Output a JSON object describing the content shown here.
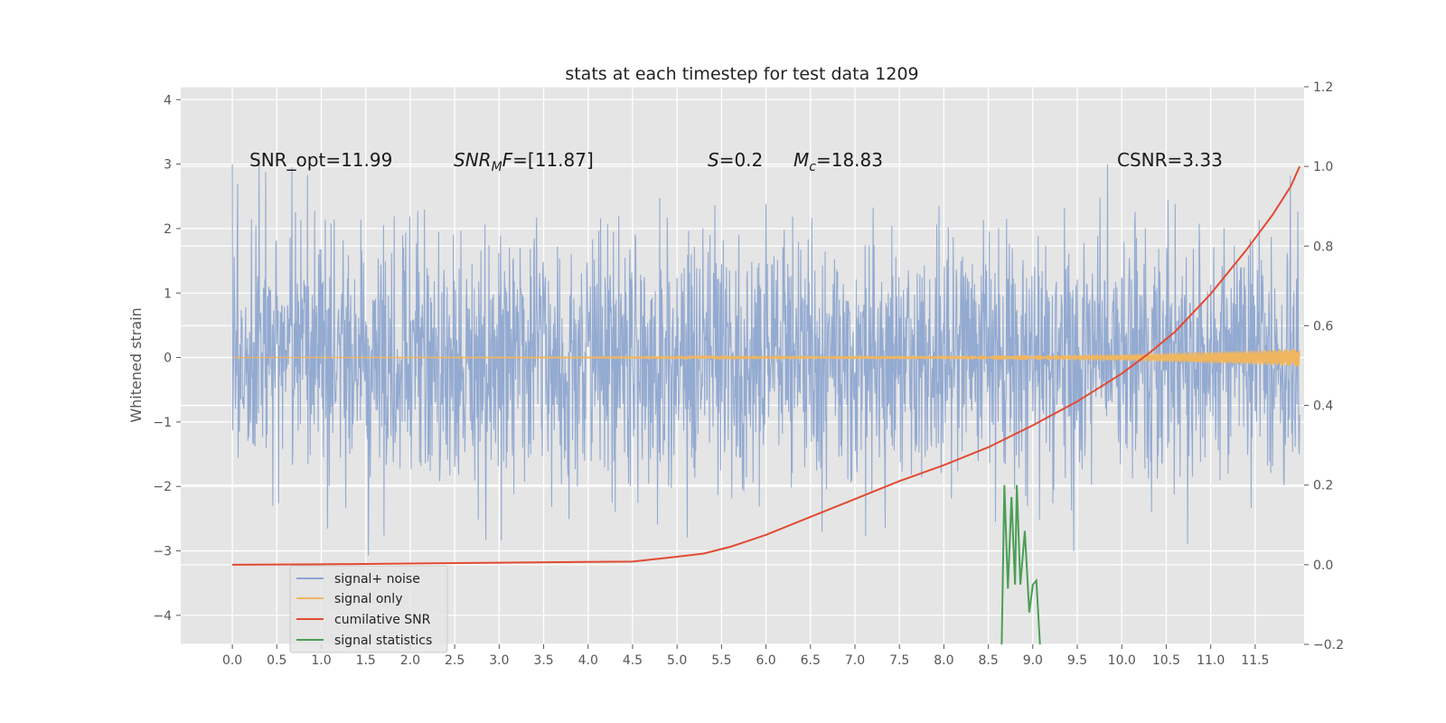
{
  "chart_data": {
    "type": "line",
    "title": "stats at each timestep for test data 1209",
    "ylabel": "Whitened strain",
    "xlim": [
      -0.58,
      12.05
    ],
    "ylim_left": [
      -4.45,
      4.2
    ],
    "ylim_right": [
      -0.2,
      1.2
    ],
    "x_ticks": [
      "0.0",
      "0.5",
      "1.0",
      "1.5",
      "2.0",
      "2.5",
      "3.0",
      "3.5",
      "4.0",
      "4.5",
      "5.0",
      "5.5",
      "6.0",
      "6.5",
      "7.0",
      "7.5",
      "8.0",
      "8.5",
      "9.0",
      "9.5",
      "10.0",
      "10.5",
      "11.0",
      "11.5"
    ],
    "y_ticks_left": [
      4,
      3,
      2,
      1,
      0,
      -1,
      -2,
      -3,
      -4
    ],
    "y_ticks_right": [
      "1.2",
      "1.0",
      "0.8",
      "0.6",
      "0.4",
      "0.2",
      "0.0",
      "−0.2"
    ],
    "grid": true,
    "legend_position": "lower-left",
    "annotations": {
      "snr_opt": "SNR_opt=11.99",
      "snr_mf_var": "SNR",
      "snr_mf_sub": "M",
      "snr_mf_var2": "F",
      "snr_mf_val": "=[11.87]",
      "s_var": "S",
      "s_val": "=0.2",
      "mc_var": "M",
      "mc_sub": "c",
      "mc_val": "=18.83",
      "csnr": "CSNR=3.33"
    },
    "series": [
      {
        "name": "signal+ noise",
        "color": "#8ea6d0",
        "axis": "left",
        "x_range": [
          0,
          12.0
        ],
        "mean": 0,
        "std": 1.0,
        "noise_samples": true
      },
      {
        "name": "signal only",
        "color": "#f0b65f",
        "axis": "left",
        "x_range": [
          0,
          12.0
        ],
        "envelope_x": [
          0,
          4,
          6,
          8,
          9,
          10,
          10.5,
          11,
          11.5,
          12.0
        ],
        "envelope_amp": [
          0.005,
          0.008,
          0.015,
          0.025,
          0.035,
          0.05,
          0.07,
          0.09,
          0.11,
          0.14
        ]
      },
      {
        "name": "cumilative SNR",
        "color": "#e24a33",
        "axis": "right",
        "x": [
          0,
          1,
          2,
          3,
          4,
          4.5,
          5,
          5.3,
          5.6,
          6.0,
          6.5,
          7.0,
          7.5,
          8.0,
          8.5,
          9.0,
          9.5,
          10.0,
          10.3,
          10.6,
          11.0,
          11.4,
          11.7,
          11.9,
          12.0
        ],
        "y": [
          0.0,
          0.001,
          0.003,
          0.005,
          0.007,
          0.008,
          0.02,
          0.028,
          0.045,
          0.075,
          0.12,
          0.165,
          0.21,
          0.25,
          0.295,
          0.35,
          0.41,
          0.48,
          0.53,
          0.585,
          0.68,
          0.79,
          0.88,
          0.95,
          1.0
        ]
      },
      {
        "name": "signal statistics",
        "color": "#4a9e55",
        "axis": "right",
        "x": [
          8.65,
          8.68,
          8.72,
          8.76,
          8.8,
          8.82,
          8.86,
          8.91,
          8.96,
          9.0,
          9.04,
          9.08
        ],
        "y": [
          -0.2,
          0.2,
          -0.06,
          0.17,
          -0.05,
          0.2,
          -0.05,
          0.085,
          -0.12,
          -0.05,
          -0.04,
          -0.2
        ]
      }
    ]
  }
}
